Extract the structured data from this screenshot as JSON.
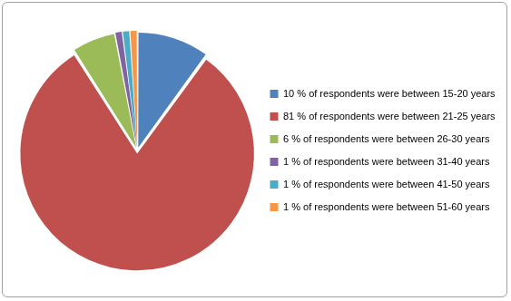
{
  "chart_data": {
    "type": "pie",
    "categories": [
      "10 % of respondents were between 15-20 years",
      "81 % of respondents were between 21-25 years",
      "6 % of respondents were between 26-30 years",
      "1 % of respondents were between 31-40 years",
      "1 % of respondents were between 41-50 years",
      "1 % of respondents were between 51-60 years"
    ],
    "values": [
      10,
      81,
      6,
      1,
      1,
      1
    ],
    "colors": [
      "#4f81bd",
      "#c0504d",
      "#9bbb59",
      "#8064a2",
      "#4bacc6",
      "#f79646"
    ],
    "legend": "right"
  }
}
